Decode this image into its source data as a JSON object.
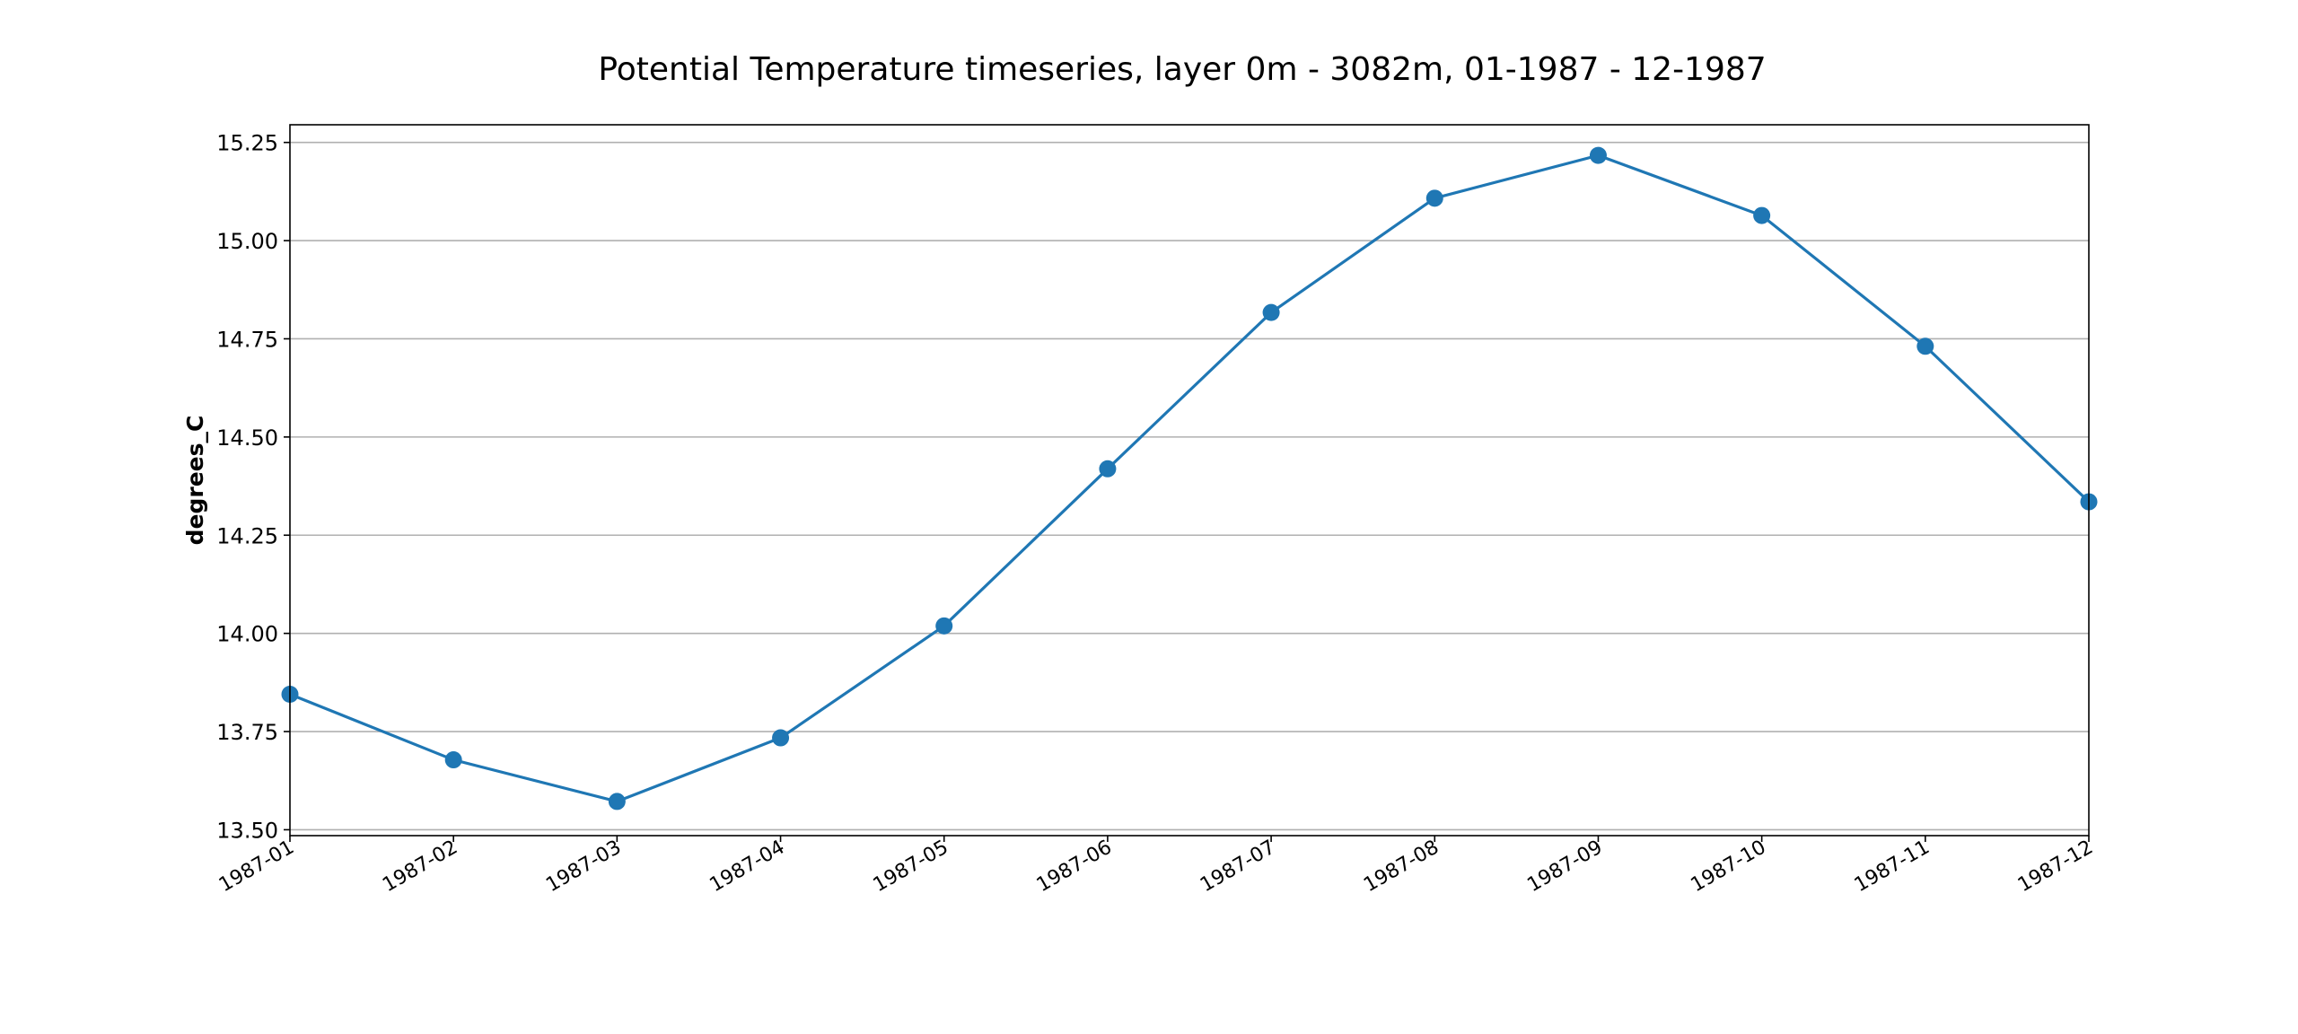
{
  "chart_data": {
    "type": "line",
    "title": "Potential Temperature timeseries, layer 0m - 3082m, 01-1987 - 12-1987",
    "xlabel": "",
    "ylabel": "degrees_C",
    "categories": [
      "1987-01",
      "1987-02",
      "1987-03",
      "1987-04",
      "1987-05",
      "1987-06",
      "1987-07",
      "1987-08",
      "1987-09",
      "1987-10",
      "1987-11",
      "1987-12"
    ],
    "x_tick_labels": [
      "1987-01",
      "1987-02",
      "1987-03",
      "1987-04",
      "1987-05",
      "1987-06",
      "1987-07",
      "1987-08",
      "1987-09",
      "1987-10",
      "1987-11",
      "1987-12"
    ],
    "y_tick_labels": [
      "13.50",
      "13.75",
      "14.00",
      "14.25",
      "14.50",
      "14.75",
      "15.00",
      "15.25"
    ],
    "y_ticks": [
      13.5,
      13.75,
      14.0,
      14.25,
      14.5,
      14.75,
      15.0,
      15.25
    ],
    "series": [
      {
        "values": [
          13.845,
          13.678,
          13.572,
          13.734,
          14.019,
          14.419,
          14.817,
          15.108,
          15.217,
          15.064,
          14.731,
          14.335
        ],
        "color": "#1f77b4",
        "marker": "circle"
      }
    ],
    "ylim": [
      13.485,
      15.295
    ],
    "grid": "horizontal",
    "legend": "none"
  }
}
